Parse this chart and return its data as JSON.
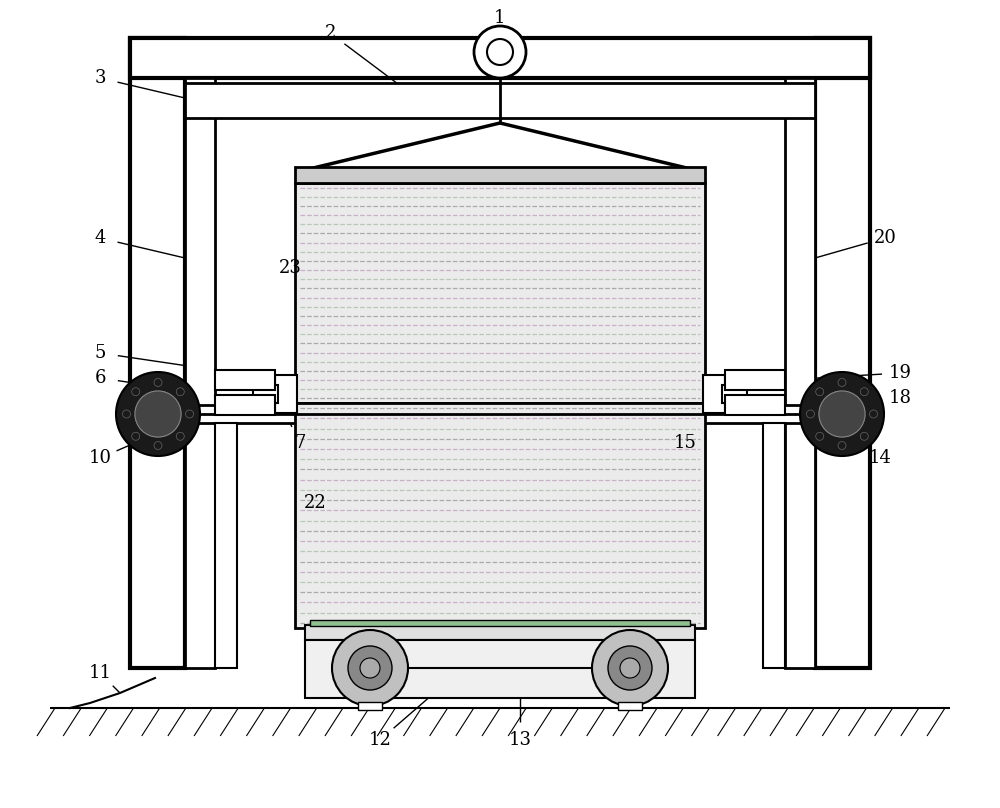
{
  "bg_color": "#ffffff",
  "line_color": "#000000",
  "container_fill": "#ebebeb",
  "dash_colors": [
    "#aaaaaa",
    "#b8c8b8",
    "#c8b0c8"
  ],
  "figsize": [
    10.0,
    8.08
  ],
  "dpi": 100
}
